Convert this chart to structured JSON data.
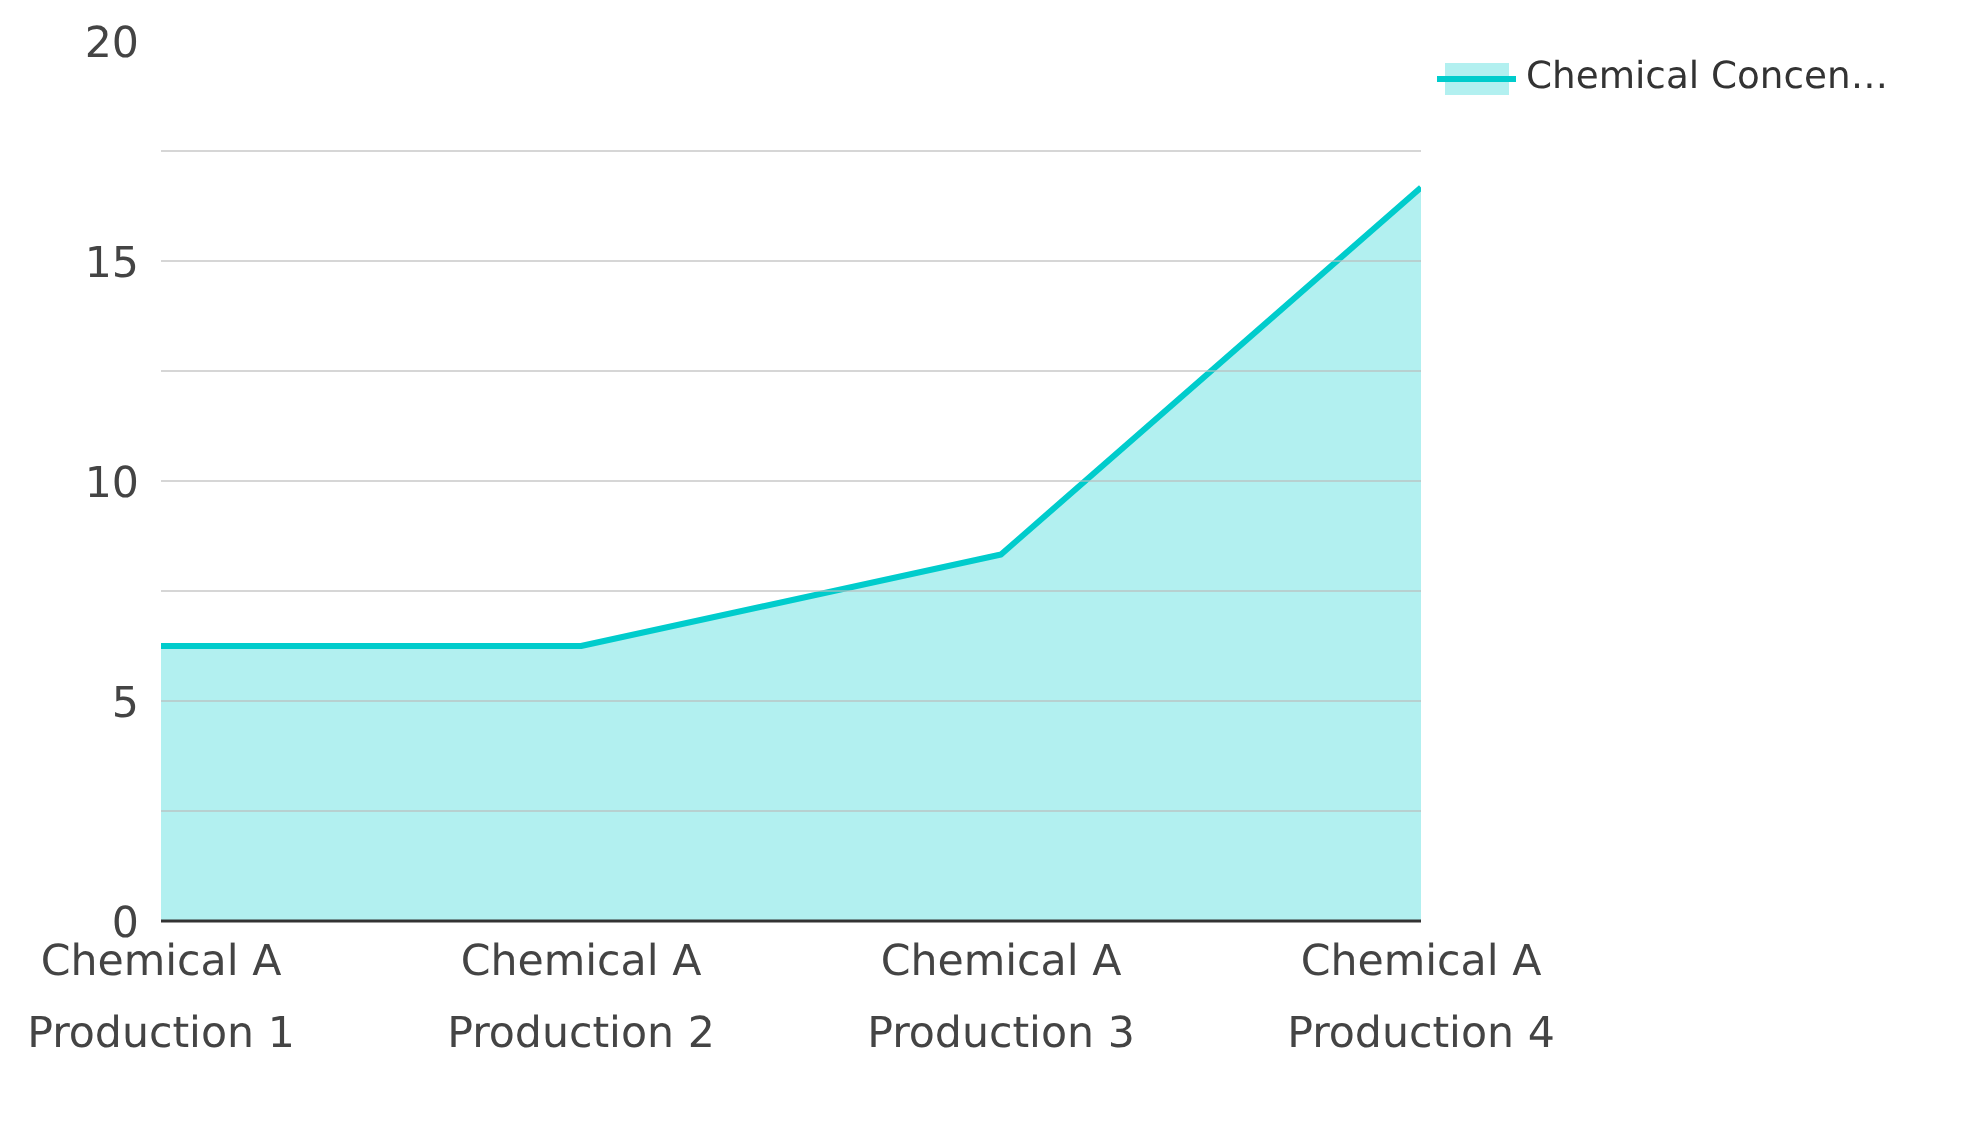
{
  "chart_data": {
    "type": "area",
    "categories": [
      "Chemical A Production 1",
      "Chemical A Production 2",
      "Chemical A Production 3",
      "Chemical A Production 4"
    ],
    "series": [
      {
        "name": "Chemical Concen…",
        "color": "#00cccc",
        "values": [
          6.25,
          6.25,
          8.33,
          16.67
        ]
      }
    ],
    "ylim": [
      0,
      20
    ],
    "yticks": [
      0,
      {
        "value": 2.5,
        "label": null
      },
      5,
      {
        "value": 7.5,
        "label": null
      },
      10,
      {
        "value": 12.5,
        "label": null
      },
      15,
      {
        "value": 17.5,
        "label": null
      },
      20
    ],
    "grid": "y",
    "legend": "top right"
  }
}
